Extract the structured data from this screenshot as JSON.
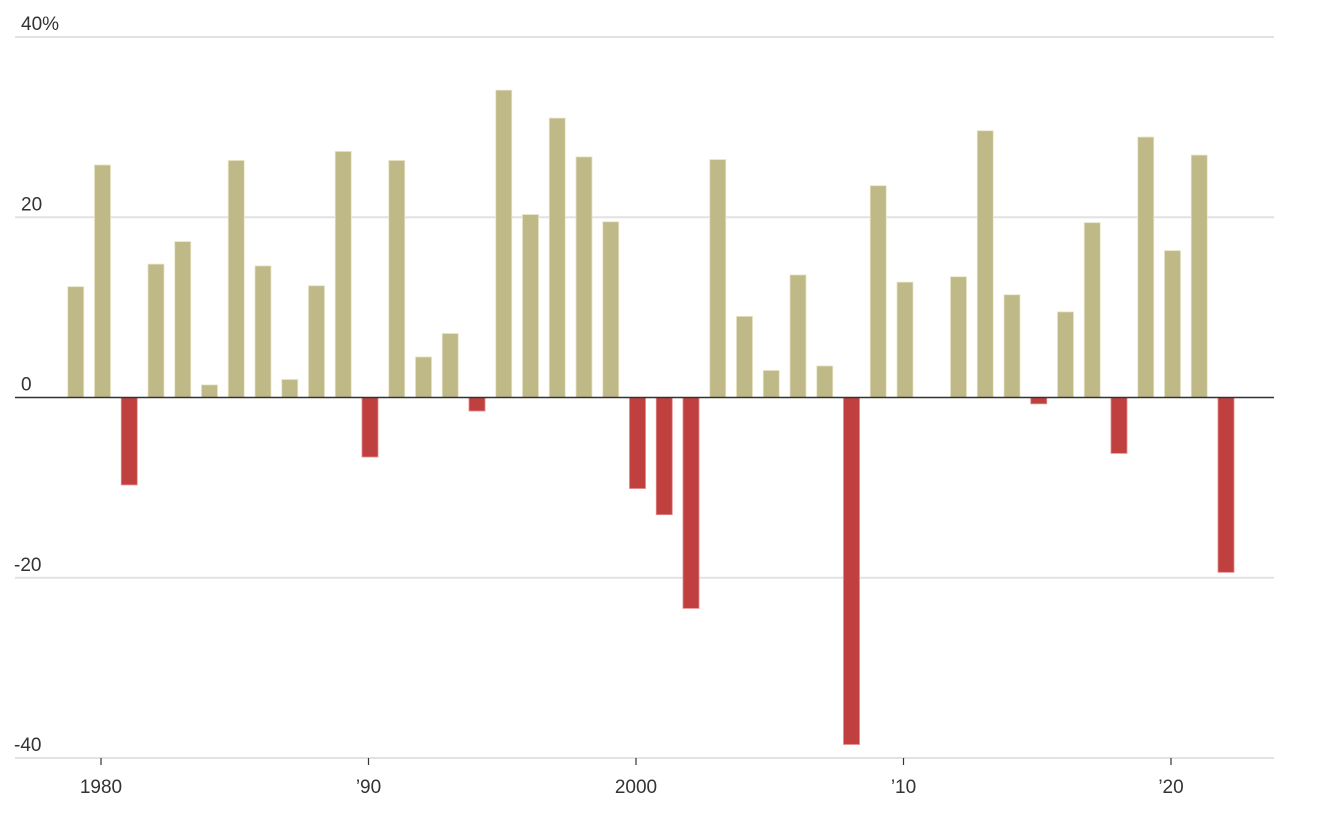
{
  "chart_data": {
    "type": "bar",
    "title": "",
    "xlabel": "",
    "ylabel": "",
    "y_unit": "%",
    "ylim": [
      -40,
      40
    ],
    "yticks": [
      40,
      20,
      0,
      -20,
      -40
    ],
    "ytick_labels": [
      "40%",
      "20",
      "0",
      "-20",
      "-40"
    ],
    "xticks": [
      1980,
      1990,
      2000,
      2010,
      2020
    ],
    "xtick_labels": [
      "1980",
      "’90",
      "2000",
      "’10",
      "’20"
    ],
    "grid": true,
    "legend": null,
    "colors": {
      "positive": "#bfb987",
      "negative": "#c04040",
      "zero_line": "#333333",
      "grid": "#e2e2e2"
    },
    "categories": [
      1979,
      1980,
      1981,
      1982,
      1983,
      1984,
      1985,
      1986,
      1987,
      1988,
      1989,
      1990,
      1991,
      1992,
      1993,
      1994,
      1995,
      1996,
      1997,
      1998,
      1999,
      2000,
      2001,
      2002,
      2003,
      2004,
      2005,
      2006,
      2007,
      2008,
      2009,
      2010,
      2011,
      2012,
      2013,
      2014,
      2015,
      2016,
      2017,
      2018,
      2019,
      2020,
      2021,
      2022
    ],
    "values": [
      12.3,
      25.8,
      -9.7,
      14.8,
      17.3,
      1.4,
      26.3,
      14.6,
      2.0,
      12.4,
      27.3,
      -6.6,
      26.3,
      4.5,
      7.1,
      -1.5,
      34.1,
      20.3,
      31.0,
      26.7,
      19.5,
      -10.1,
      -13.0,
      -23.4,
      26.4,
      9.0,
      3.0,
      13.6,
      3.5,
      -38.5,
      23.5,
      12.8,
      0.0,
      13.4,
      29.6,
      11.4,
      -0.7,
      9.5,
      19.4,
      -6.2,
      28.9,
      16.3,
      26.9,
      -19.4
    ]
  }
}
